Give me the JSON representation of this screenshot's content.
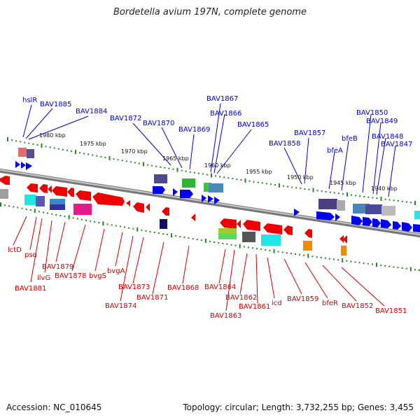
{
  "title": "Bordetella avium 197N, complete genome",
  "footer": {
    "accession": "Accession: NC_010645",
    "summary": "Topology: circular; Length: 3,732,255 bp; Genes: 3,455"
  },
  "colors": {
    "forward_label": "#0000cc",
    "reverse_label": "#cc0000",
    "tick": "#228822",
    "backbone": "#888888"
  },
  "scale_labels": [
    "1980 kbp",
    "1975 kbp",
    "1970 kbp",
    "1965 kbp",
    "1960 kbp",
    "1955 kbp",
    "1950 kbp",
    "1945 kbp",
    "1940 kbp"
  ],
  "forward_genes": [
    "hslR",
    "BAV1885",
    "BAV1884",
    "BAV1872",
    "BAV1870",
    "BAV1869",
    "BAV1867",
    "BAV1866",
    "BAV1865",
    "BAV1858",
    "BAV1857",
    "bfeA",
    "bfeB",
    "BAV1850",
    "BAV1849",
    "BAV1848",
    "BAV1847"
  ],
  "reverse_genes": [
    "lctD",
    "psd",
    "BAV1881",
    "ilvG",
    "BAV1879",
    "BAV1878",
    "bvgS",
    "bvgA",
    "BAV1874",
    "BAV1873",
    "BAV1871",
    "BAV1868",
    "BAV1864",
    "BAV1863",
    "BAV1862",
    "BAV1861",
    "icd",
    "BAV1859",
    "bfeR",
    "BAV1852",
    "BAV1851"
  ]
}
